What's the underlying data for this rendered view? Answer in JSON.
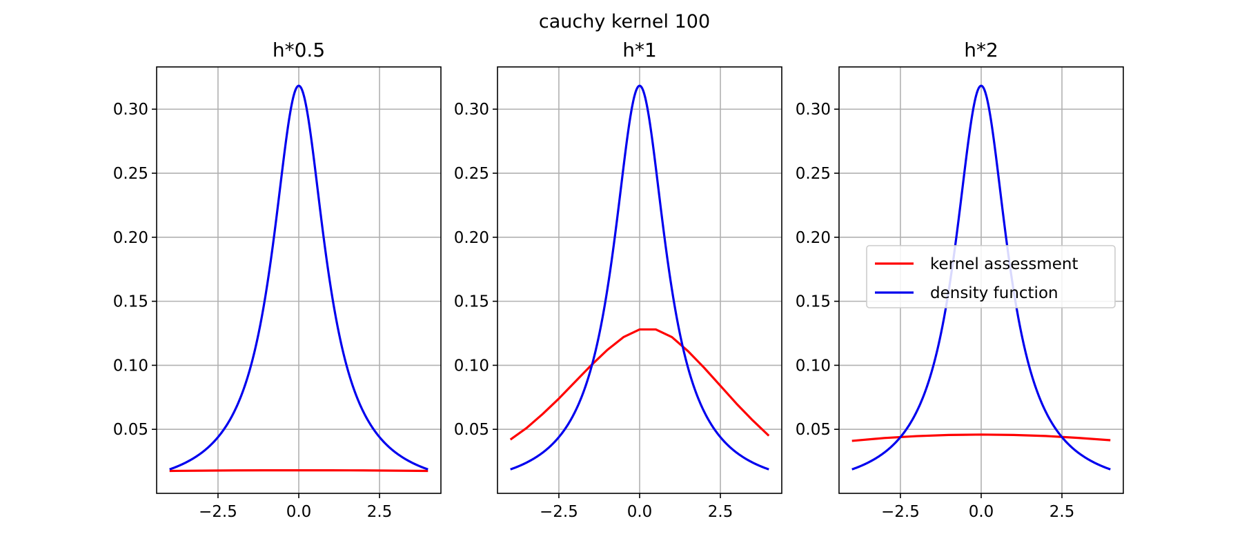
{
  "figure": {
    "suptitle": "cauchy kernel 100"
  },
  "colors": {
    "kernel": "#ff0000",
    "density": "#0000ee",
    "grid": "#b0b0b0",
    "axes": "#000000"
  },
  "chart_data": [
    {
      "type": "line",
      "title": "h*0.5",
      "xlim": [
        -4.4,
        4.4
      ],
      "ylim": [
        0.0,
        0.333
      ],
      "xticks": [
        -2.5,
        0.0,
        2.5
      ],
      "xtick_labels": [
        "−2.5",
        "0.0",
        "2.5"
      ],
      "yticks": [
        0.05,
        0.1,
        0.15,
        0.2,
        0.25,
        0.3
      ],
      "ytick_labels": [
        "0.05",
        "0.10",
        "0.15",
        "0.20",
        "0.25",
        "0.30"
      ],
      "grid": true,
      "legend": null,
      "series": [
        {
          "name": "kernel assessment",
          "color": "#ff0000",
          "x": [
            -4,
            -3,
            -2,
            -1,
            0,
            1,
            2,
            3,
            4
          ],
          "y": [
            0.0175,
            0.0177,
            0.0179,
            0.018,
            0.018,
            0.018,
            0.0179,
            0.0177,
            0.0175
          ]
        },
        {
          "name": "density function",
          "color": "#0000ee",
          "function": "cauchy",
          "x_range": [
            -4,
            4
          ]
        }
      ]
    },
    {
      "type": "line",
      "title": "h*1",
      "xlim": [
        -4.4,
        4.4
      ],
      "ylim": [
        0.0,
        0.333
      ],
      "xticks": [
        -2.5,
        0.0,
        2.5
      ],
      "xtick_labels": [
        "−2.5",
        "0.0",
        "2.5"
      ],
      "yticks": [
        0.05,
        0.1,
        0.15,
        0.2,
        0.25,
        0.3
      ],
      "ytick_labels": [
        "0.05",
        "0.10",
        "0.15",
        "0.20",
        "0.25",
        "0.30"
      ],
      "grid": true,
      "legend": null,
      "series": [
        {
          "name": "kernel assessment",
          "color": "#ff0000",
          "x": [
            -4,
            -3.5,
            -3,
            -2.5,
            -2,
            -1.5,
            -1,
            -0.5,
            0,
            0.5,
            1,
            1.5,
            2,
            2.5,
            3,
            3.5,
            4
          ],
          "y": [
            0.042,
            0.051,
            0.062,
            0.074,
            0.087,
            0.1,
            0.112,
            0.122,
            0.128,
            0.128,
            0.122,
            0.111,
            0.098,
            0.084,
            0.07,
            0.057,
            0.045
          ]
        },
        {
          "name": "density function",
          "color": "#0000ee",
          "function": "cauchy",
          "x_range": [
            -4,
            4
          ]
        }
      ]
    },
    {
      "type": "line",
      "title": "h*2",
      "xlim": [
        -4.4,
        4.4
      ],
      "ylim": [
        0.0,
        0.333
      ],
      "xticks": [
        -2.5,
        0.0,
        2.5
      ],
      "xtick_labels": [
        "−2.5",
        "0.0",
        "2.5"
      ],
      "yticks": [
        0.05,
        0.1,
        0.15,
        0.2,
        0.25,
        0.3
      ],
      "ytick_labels": [
        "0.05",
        "0.10",
        "0.15",
        "0.20",
        "0.25",
        "0.30"
      ],
      "grid": true,
      "legend": "center-right",
      "series": [
        {
          "name": "kernel assessment",
          "color": "#ff0000",
          "x": [
            -4,
            -3,
            -2,
            -1,
            0,
            1,
            2,
            3,
            4
          ],
          "y": [
            0.041,
            0.0432,
            0.0447,
            0.0456,
            0.0459,
            0.0456,
            0.0448,
            0.0433,
            0.0415
          ]
        },
        {
          "name": "density function",
          "color": "#0000ee",
          "function": "cauchy",
          "x_range": [
            -4,
            4
          ]
        }
      ]
    }
  ]
}
